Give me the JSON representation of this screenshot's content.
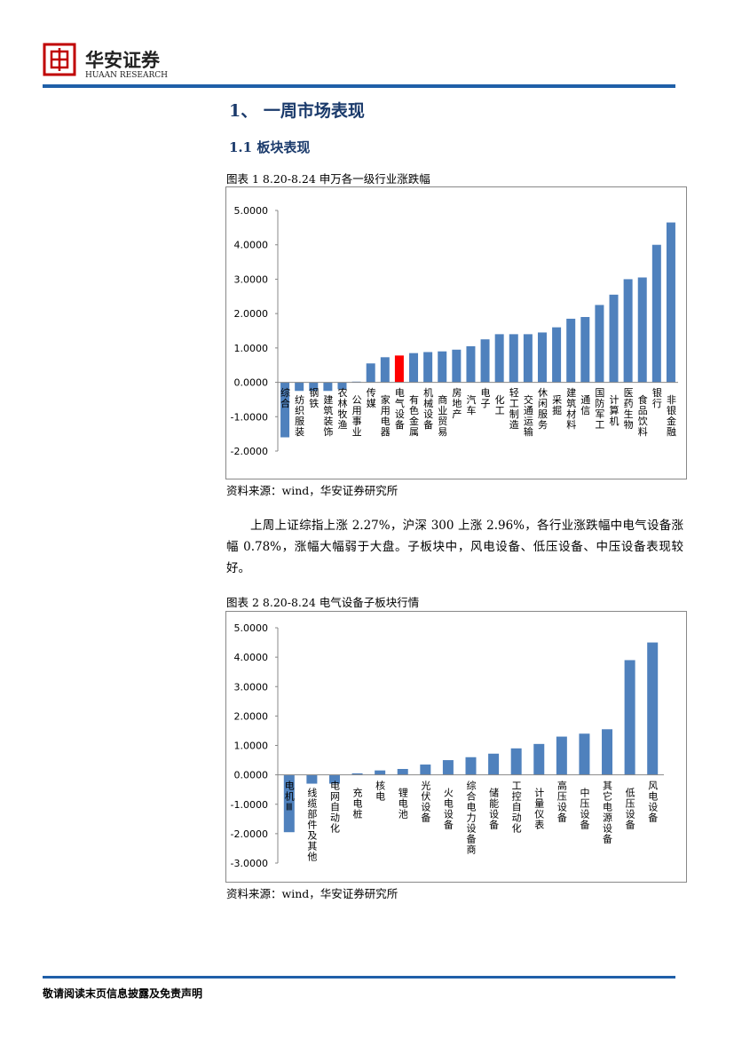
{
  "header": {
    "brand": "华安证券",
    "brand_en": "HUAAN RESEARCH"
  },
  "heading1": "1、 一周市场表现",
  "heading2": "1.1  板块表现",
  "paragraph": "上周上证综指上涨 2.27%，沪深 300 上涨 2.96%，各行业涨跌幅中电气设备涨幅 0.78%，涨幅大幅弱于大盘。子板块中，风电设备、低压设备、中压设备表现较好。",
  "footer": "敬请阅读末页信息披露及免责声明",
  "chart_data": [
    {
      "type": "bar",
      "title": "图表  1 8.20-8.24 申万各一级行业涨跌幅",
      "source": "资料来源：wind，华安证券研究所",
      "categories": [
        "综合",
        "纺织服装",
        "钢铁",
        "建筑装饰",
        "农林牧渔",
        "公用事业",
        "传媒",
        "家用电器",
        "电气设备",
        "有色金属",
        "机械设备",
        "商业贸易",
        "房地产",
        "汽车",
        "电子",
        "化工",
        "轻工制造",
        "交通运输",
        "休闲服务",
        "采掘",
        "建筑材料",
        "通信",
        "国防军工",
        "计算机",
        "医药生物",
        "食品饮料",
        "银行",
        "非银金融"
      ],
      "values": [
        -1.6,
        -0.25,
        -0.25,
        -0.25,
        -0.2,
        0.02,
        0.55,
        0.73,
        0.78,
        0.85,
        0.88,
        0.9,
        0.95,
        1.05,
        1.25,
        1.4,
        1.4,
        1.4,
        1.45,
        1.6,
        1.85,
        1.9,
        2.25,
        2.55,
        3.0,
        3.05,
        4.0,
        4.65
      ],
      "colors": [
        "#4f81bd",
        "#4f81bd",
        "#4f81bd",
        "#4f81bd",
        "#4f81bd",
        "#4f81bd",
        "#4f81bd",
        "#4f81bd",
        "#ff0000",
        "#4f81bd",
        "#4f81bd",
        "#4f81bd",
        "#4f81bd",
        "#4f81bd",
        "#4f81bd",
        "#4f81bd",
        "#4f81bd",
        "#4f81bd",
        "#4f81bd",
        "#4f81bd",
        "#4f81bd",
        "#4f81bd",
        "#4f81bd",
        "#4f81bd",
        "#4f81bd",
        "#4f81bd",
        "#4f81bd",
        "#4f81bd"
      ],
      "ylim": [
        -2,
        5
      ],
      "yticks": [
        {
          "value": -2,
          "label": "-2.0000"
        },
        {
          "value": -1,
          "label": "-1.0000"
        },
        {
          "value": 0,
          "label": "0.0000"
        },
        {
          "value": 1,
          "label": "1.0000"
        },
        {
          "value": 2,
          "label": "2.0000"
        },
        {
          "value": 3,
          "label": "3.0000"
        },
        {
          "value": 4,
          "label": "4.0000"
        },
        {
          "value": 5,
          "label": "5.0000"
        }
      ]
    },
    {
      "type": "bar",
      "title": "图表  2 8.20-8.24 电气设备子板块行情",
      "source": "资料来源：wind，华安证券研究所",
      "categories": [
        "电机Ⅲ",
        "线缆部件及其他",
        "电网自动化",
        "充电桩",
        "核电",
        "锂电池",
        "光伏设备",
        "火电设备",
        "综合电力设备商",
        "储能设备",
        "工控自动化",
        "计量仪表",
        "高压设备",
        "中压设备",
        "其它电源设备",
        "低压设备",
        "风电设备"
      ],
      "values": [
        -1.95,
        -0.3,
        -0.3,
        0.05,
        0.15,
        0.2,
        0.35,
        0.5,
        0.6,
        0.72,
        0.9,
        1.05,
        1.3,
        1.4,
        1.55,
        3.9,
        4.5
      ],
      "colors": [
        "#4f81bd",
        "#4f81bd",
        "#4f81bd",
        "#4f81bd",
        "#4f81bd",
        "#4f81bd",
        "#4f81bd",
        "#4f81bd",
        "#4f81bd",
        "#4f81bd",
        "#4f81bd",
        "#4f81bd",
        "#4f81bd",
        "#4f81bd",
        "#4f81bd",
        "#4f81bd",
        "#4f81bd"
      ],
      "ylim": [
        -3,
        5
      ],
      "yticks": [
        {
          "value": -3,
          "label": "-3.0000"
        },
        {
          "value": -2,
          "label": "-2.0000"
        },
        {
          "value": -1,
          "label": "-1.0000"
        },
        {
          "value": 0,
          "label": "0.0000"
        },
        {
          "value": 1,
          "label": "1.0000"
        },
        {
          "value": 2,
          "label": "2.0000"
        },
        {
          "value": 3,
          "label": "3.0000"
        },
        {
          "value": 4,
          "label": "4.0000"
        },
        {
          "value": 5,
          "label": "5.0000"
        }
      ]
    }
  ]
}
